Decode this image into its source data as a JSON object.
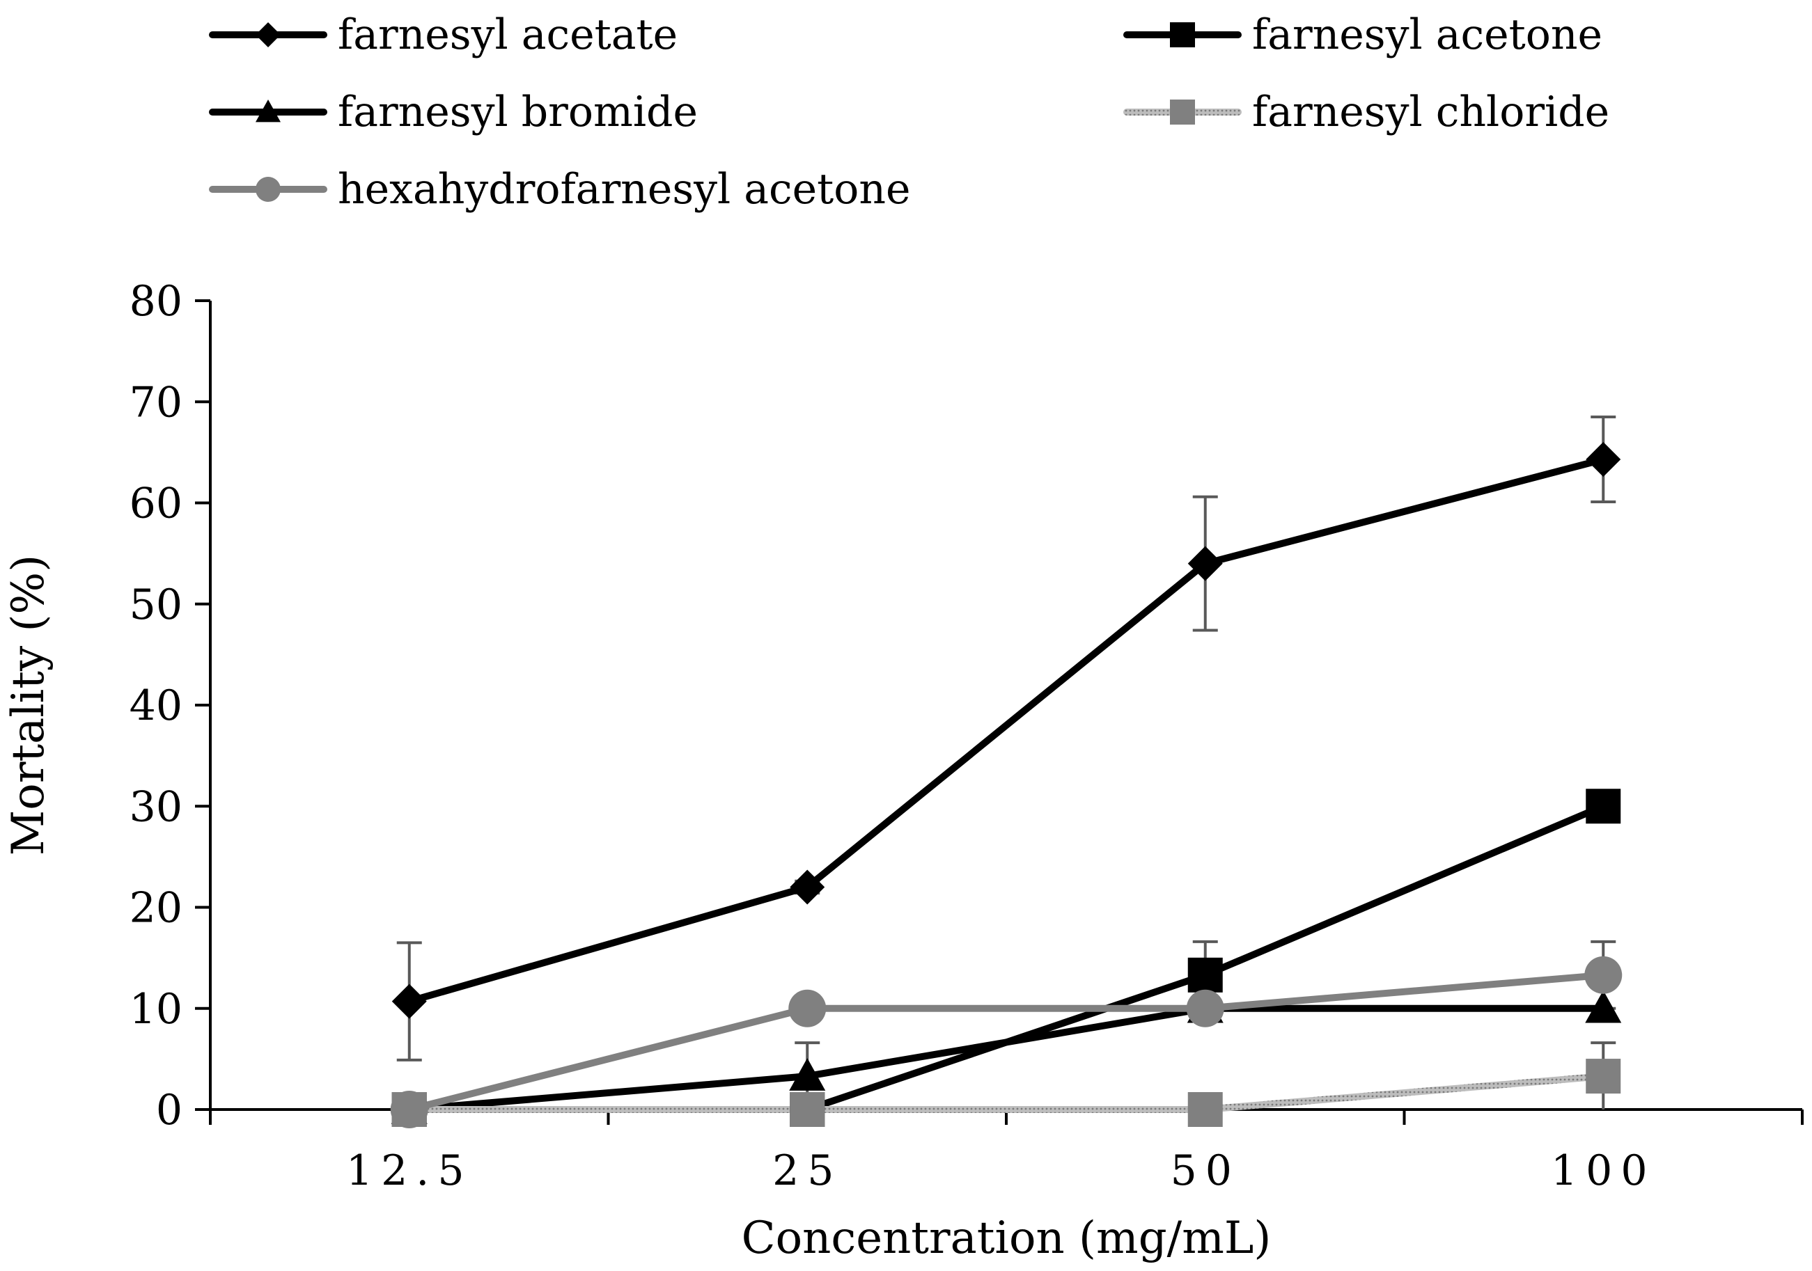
{
  "chart_data": {
    "type": "line",
    "title": "",
    "xlabel": "Concentration (mg/mL)",
    "ylabel": "Mortality (%)",
    "categories": [
      "12.5",
      "25",
      "50",
      "100"
    ],
    "ylim": [
      0,
      80
    ],
    "yticks": [
      0,
      10,
      20,
      30,
      40,
      50,
      60,
      70,
      80
    ],
    "grid": false,
    "legend_position": "top",
    "series": [
      {
        "name": "farnesyl acetate",
        "color": "#000000",
        "marker": "diamond",
        "line_style": "solid",
        "values": [
          10.7,
          22.0,
          54.0,
          64.3
        ],
        "errors": [
          5.8,
          0.6,
          6.6,
          4.2
        ]
      },
      {
        "name": "farnesyl acetone",
        "color": "#000000",
        "marker": "square",
        "line_style": "solid",
        "values": [
          0,
          0,
          13.3,
          30.0
        ],
        "errors": [
          0,
          0,
          3.3,
          0
        ]
      },
      {
        "name": "farnesyl bromide",
        "color": "#000000",
        "marker": "triangle",
        "line_style": "solid",
        "values": [
          0,
          3.3,
          10.0,
          10.0
        ],
        "errors": [
          0,
          3.3,
          0,
          0
        ]
      },
      {
        "name": "farnesyl chloride",
        "color": "#a6a6a6",
        "marker_color": "#808080",
        "marker": "square",
        "line_style": "dotted",
        "values": [
          0,
          0,
          0,
          3.3
        ],
        "errors": [
          0,
          0,
          0,
          3.3
        ]
      },
      {
        "name": "hexahydrofarnesyl acetone",
        "color": "#808080",
        "marker": "circle",
        "line_style": "solid",
        "values": [
          0,
          10.0,
          10.0,
          13.3
        ],
        "errors": [
          0,
          0,
          0,
          3.3
        ]
      }
    ]
  }
}
